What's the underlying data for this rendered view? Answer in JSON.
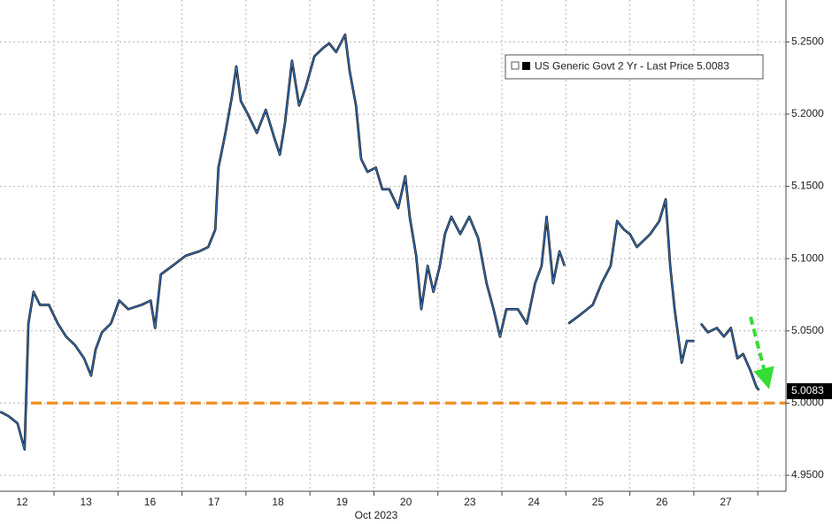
{
  "chart_data": {
    "type": "line",
    "legend_label": "US Generic Govt 2 Yr - Last Price 5.0083",
    "xlabel": "Oct 2023",
    "categories": [
      "12",
      "13",
      "16",
      "17",
      "18",
      "19",
      "20",
      "23",
      "24",
      "25",
      "26",
      "27"
    ],
    "xlim": [
      0.156,
      12.44
    ],
    "ylim": [
      4.939,
      5.279
    ],
    "yticks": [
      {
        "value": 4.95,
        "label": "4.9500"
      },
      {
        "value": 5.0,
        "label": "5.0000"
      },
      {
        "value": 5.05,
        "label": "5.0500"
      },
      {
        "value": 5.1,
        "label": "5.1000"
      },
      {
        "value": 5.15,
        "label": "5.1500"
      },
      {
        "value": 5.2,
        "label": "5.2000"
      },
      {
        "value": 5.25,
        "label": "5.2500"
      }
    ],
    "grid": true,
    "series": [
      {
        "name": "US Generic Govt 2 Yr",
        "color": "#3b78c2",
        "x": [
          0.16,
          0.29,
          0.43,
          0.54,
          0.6,
          0.68,
          0.78,
          0.92,
          1.06,
          1.19,
          1.33,
          1.47,
          1.58,
          1.65,
          1.75,
          1.89,
          2.02,
          2.16,
          2.37,
          2.51,
          2.58,
          2.67,
          2.85,
          3.06,
          3.27,
          3.41,
          3.52,
          3.57,
          3.68,
          3.78,
          3.85,
          3.92,
          4.03,
          4.17,
          4.31,
          4.44,
          4.53,
          4.61,
          4.72,
          4.83,
          4.93,
          5.07,
          5.21,
          5.3,
          5.41,
          5.55,
          5.62,
          5.72,
          5.8,
          5.9,
          6.03,
          6.13,
          6.24,
          6.38,
          6.49,
          6.56,
          6.66,
          6.74,
          6.84,
          6.93,
          7.03,
          7.11,
          7.21,
          7.35,
          7.49,
          7.63,
          7.76,
          7.87,
          7.97,
          8.07,
          8.25,
          8.39,
          8.52,
          8.62,
          8.7,
          8.8,
          8.9,
          8.98,
          null,
          9.04,
          9.22,
          9.42,
          9.56,
          9.7,
          9.8,
          9.91,
          10.0,
          10.11,
          10.32,
          10.46,
          10.56,
          10.63,
          10.7,
          10.81,
          10.89,
          11.01,
          null,
          11.11,
          11.22,
          11.36,
          11.47,
          11.58,
          11.68,
          11.77,
          11.89,
          11.98,
          12.02
        ],
        "values": [
          4.994,
          4.991,
          4.986,
          4.968,
          5.055,
          5.077,
          5.068,
          5.068,
          5.055,
          5.046,
          5.04,
          5.031,
          5.019,
          5.037,
          5.049,
          5.055,
          5.071,
          5.065,
          5.068,
          5.071,
          5.052,
          5.089,
          5.095,
          5.102,
          5.105,
          5.108,
          5.12,
          5.163,
          5.187,
          5.212,
          5.233,
          5.209,
          5.2,
          5.187,
          5.203,
          5.184,
          5.172,
          5.194,
          5.237,
          5.206,
          5.218,
          5.24,
          5.246,
          5.249,
          5.243,
          5.255,
          5.23,
          5.206,
          5.169,
          5.16,
          5.163,
          5.148,
          5.148,
          5.135,
          5.157,
          5.129,
          5.102,
          5.065,
          5.095,
          5.077,
          5.095,
          5.117,
          5.129,
          5.117,
          5.129,
          5.114,
          5.083,
          5.065,
          5.046,
          5.065,
          5.065,
          5.055,
          5.083,
          5.095,
          5.129,
          5.083,
          5.105,
          5.095,
          null,
          5.055,
          5.061,
          5.068,
          5.083,
          5.095,
          5.126,
          5.12,
          5.117,
          5.108,
          5.117,
          5.126,
          5.141,
          5.095,
          5.065,
          5.028,
          5.043,
          5.043,
          null,
          5.055,
          5.049,
          5.052,
          5.046,
          5.052,
          5.031,
          5.034,
          5.022,
          5.011,
          5.009
        ]
      }
    ],
    "ref_line": {
      "value": 5.0,
      "color": "#f0932b"
    },
    "last_value": 5.0083
  }
}
